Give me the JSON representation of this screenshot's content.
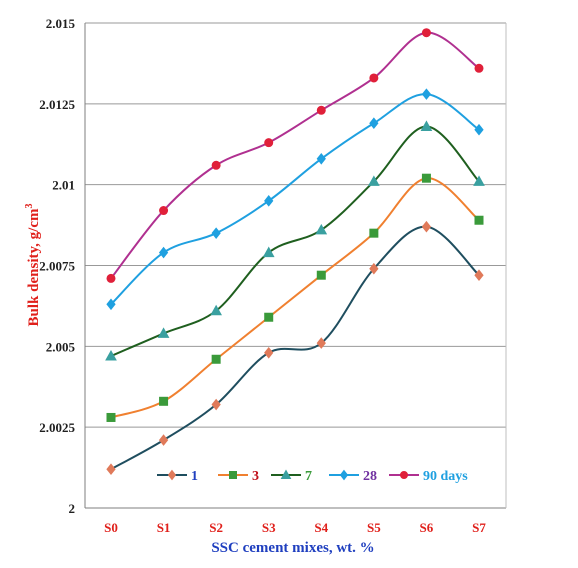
{
  "chart_data": {
    "type": "line",
    "title": "",
    "xlabel": "SSC cement mixes, wt. %",
    "ylabel": "Bulk density, g/cm",
    "ylabel_superscript": "3",
    "categories": [
      "S0",
      "S1",
      "S2",
      "S3",
      "S4",
      "S5",
      "S6",
      "S7"
    ],
    "ylim": [
      2,
      2.015
    ],
    "yticks": [
      2,
      2.0025,
      2.005,
      2.0075,
      2.01,
      2.0125,
      2.015
    ],
    "ytick_labels": [
      "2",
      "2.0025",
      "2.005",
      "2.0075",
      "2.01",
      "2.0125",
      "2.015"
    ],
    "grid": true,
    "legend_position": "bottom-inside",
    "colors": {
      "xlabel": "#1f3fbf",
      "ylabel": "#e0201b",
      "xtick": "#e0201b",
      "ytick": "#1f1f1f",
      "grid": "#999999"
    },
    "series": [
      {
        "name": "1",
        "values": [
          2.0012,
          2.0021,
          2.0032,
          2.0048,
          2.0051,
          2.0074,
          2.0087,
          2.0072
        ],
        "line_color": "#1f4e5f",
        "marker": "diamond",
        "marker_color": "#e07a5a",
        "label_color": "#1f3fbf"
      },
      {
        "name": "3",
        "values": [
          2.0028,
          2.0033,
          2.0046,
          2.0059,
          2.0072,
          2.0085,
          2.0102,
          2.0089
        ],
        "line_color": "#f08030",
        "marker": "square",
        "marker_color": "#3a9a3a",
        "label_color": "#c0101a"
      },
      {
        "name": "7",
        "values": [
          2.0047,
          2.0054,
          2.0061,
          2.0079,
          2.0086,
          2.0101,
          2.0118,
          2.0101
        ],
        "line_color": "#1f5f1f",
        "marker": "triangle",
        "marker_color": "#3aa0a0",
        "label_color": "#3a9a3a"
      },
      {
        "name": "28",
        "values": [
          2.0063,
          2.0079,
          2.0085,
          2.0095,
          2.0108,
          2.0119,
          2.0128,
          2.0117
        ],
        "line_color": "#1fa0e0",
        "marker": "diamond",
        "marker_color": "#1fa0e0",
        "label_color": "#7030a0"
      },
      {
        "name": "90 days",
        "values": [
          2.0071,
          2.0092,
          2.0106,
          2.0113,
          2.0123,
          2.0133,
          2.0147,
          2.0136
        ],
        "line_color": "#b03090",
        "marker": "circle",
        "marker_color": "#e0203a",
        "label_color": "#1fa0e0"
      }
    ]
  }
}
